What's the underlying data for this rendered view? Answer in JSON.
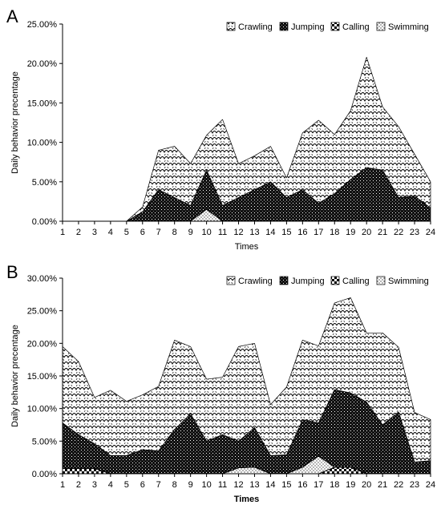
{
  "figure": {
    "panels": [
      "A",
      "B"
    ]
  },
  "colors": {
    "stroke": "#000000",
    "background": "#ffffff"
  },
  "chart_data": [
    {
      "type": "area",
      "stacked": true,
      "panel_label": "A",
      "xlabel": "Times",
      "ylabel": "Daily behavior precentage",
      "x": [
        1,
        2,
        3,
        4,
        5,
        6,
        7,
        8,
        9,
        10,
        11,
        12,
        13,
        14,
        15,
        16,
        17,
        18,
        19,
        20,
        21,
        22,
        23,
        24
      ],
      "x_tick_labels": [
        "1",
        "2",
        "3",
        "4",
        "5",
        "6",
        "7",
        "8",
        "9",
        "10",
        "11",
        "12",
        "13",
        "14",
        "15",
        "16",
        "17",
        "18",
        "19",
        "20",
        "21",
        "22",
        "23",
        "24"
      ],
      "ylim": [
        0,
        25
      ],
      "y_ticks": [
        0,
        5,
        10,
        15,
        20,
        25
      ],
      "y_tick_labels": [
        "0.00%",
        "5.00%",
        "10.00%",
        "15.00%",
        "20.00%",
        "25.00%"
      ],
      "legend_position": "top-right",
      "legend": [
        {
          "name": "Crawling",
          "pattern": "scallop"
        },
        {
          "name": "Jumping",
          "pattern": "dark-speckle"
        },
        {
          "name": "Calling",
          "pattern": "checker"
        },
        {
          "name": "Swimming",
          "pattern": "dots"
        }
      ],
      "stack_order": [
        "Calling",
        "Swimming",
        "Jumping",
        "Crawling"
      ],
      "series": [
        {
          "name": "Calling",
          "pattern": "checker",
          "values": [
            0,
            0,
            0,
            0,
            0,
            0,
            0,
            0,
            0,
            0,
            0,
            0,
            0,
            0,
            0,
            0,
            0,
            0,
            0,
            0,
            0,
            0,
            0,
            0
          ]
        },
        {
          "name": "Swimming",
          "pattern": "dots",
          "values": [
            0,
            0,
            0,
            0,
            0,
            0,
            0,
            0,
            0,
            1.5,
            0,
            0,
            0,
            0,
            0,
            0,
            0,
            0,
            0,
            0,
            0,
            0,
            0,
            0
          ]
        },
        {
          "name": "Jumping",
          "pattern": "dark-speckle",
          "values": [
            0,
            0,
            0,
            0,
            0,
            1.2,
            4,
            3,
            2,
            5,
            2,
            3,
            4,
            5,
            3,
            4,
            2.3,
            3.5,
            5.3,
            6.8,
            6.5,
            3,
            3.2,
            1.7
          ]
        },
        {
          "name": "Crawling",
          "pattern": "scallop",
          "values": [
            0,
            0,
            0,
            0,
            0,
            0.6,
            5,
            6.5,
            5.3,
            4.4,
            10.9,
            4.3,
            4.3,
            4.5,
            2.5,
            7.2,
            10.5,
            7.5,
            8.7,
            14,
            8,
            9,
            5.3,
            3.3
          ]
        }
      ]
    },
    {
      "type": "area",
      "stacked": true,
      "panel_label": "B",
      "xlabel": "Times",
      "ylabel": "Daily behavior precentage",
      "x": [
        1,
        2,
        3,
        4,
        5,
        6,
        7,
        8,
        9,
        10,
        11,
        12,
        13,
        14,
        15,
        16,
        17,
        18,
        19,
        20,
        21,
        22,
        23,
        24
      ],
      "x_tick_labels": [
        "1",
        "2",
        "3",
        "4",
        "5",
        "6",
        "7",
        "8",
        "9",
        "10",
        "11",
        "12",
        "13",
        "14",
        "15",
        "16",
        "17",
        "18",
        "19",
        "20",
        "21",
        "22",
        "23",
        "24"
      ],
      "ylim": [
        0,
        30
      ],
      "y_ticks": [
        0,
        5,
        10,
        15,
        20,
        25,
        30
      ],
      "y_tick_labels": [
        "0.00%",
        "5.00%",
        "10.00%",
        "15.00%",
        "20.00%",
        "25.00%",
        "30.00%"
      ],
      "legend_position": "top-right",
      "legend": [
        {
          "name": "Crawling",
          "pattern": "scallop"
        },
        {
          "name": "Jumping",
          "pattern": "dark-speckle"
        },
        {
          "name": "Calling",
          "pattern": "checker"
        },
        {
          "name": "Swimming",
          "pattern": "dots"
        }
      ],
      "stack_order": [
        "Calling",
        "Swimming",
        "Jumping",
        "Crawling"
      ],
      "series": [
        {
          "name": "Calling",
          "pattern": "checker",
          "values": [
            0.8,
            0.8,
            0.8,
            0,
            0,
            0,
            0,
            0,
            0,
            0,
            0,
            0,
            0,
            0,
            0,
            0,
            0,
            1,
            1,
            0,
            0,
            0,
            0,
            0
          ]
        },
        {
          "name": "Swimming",
          "pattern": "dots",
          "values": [
            0,
            0,
            0,
            0,
            0,
            0,
            0,
            0,
            0,
            0,
            0,
            0.9,
            1,
            0,
            0,
            1,
            2.7,
            0,
            0,
            0,
            0,
            0,
            0,
            0
          ]
        },
        {
          "name": "Jumping",
          "pattern": "dark-speckle",
          "values": [
            7,
            5.2,
            3.8,
            2.8,
            2.8,
            3.7,
            3.5,
            6.8,
            9.2,
            5,
            6,
            4.1,
            6.1,
            2.8,
            2.9,
            7.3,
            5.1,
            11.9,
            11.4,
            11,
            7.5,
            9.5,
            1.8,
            2
          ]
        },
        {
          "name": "Crawling",
          "pattern": "scallop",
          "values": [
            11.7,
            11.2,
            7.1,
            10,
            8.3,
            8.4,
            9.9,
            13.7,
            10.3,
            9.5,
            8.8,
            14.5,
            12.9,
            7.8,
            10.4,
            12.2,
            11.8,
            13.3,
            14.6,
            10.6,
            14.1,
            9.9,
            7.6,
            6.3
          ]
        }
      ]
    }
  ]
}
